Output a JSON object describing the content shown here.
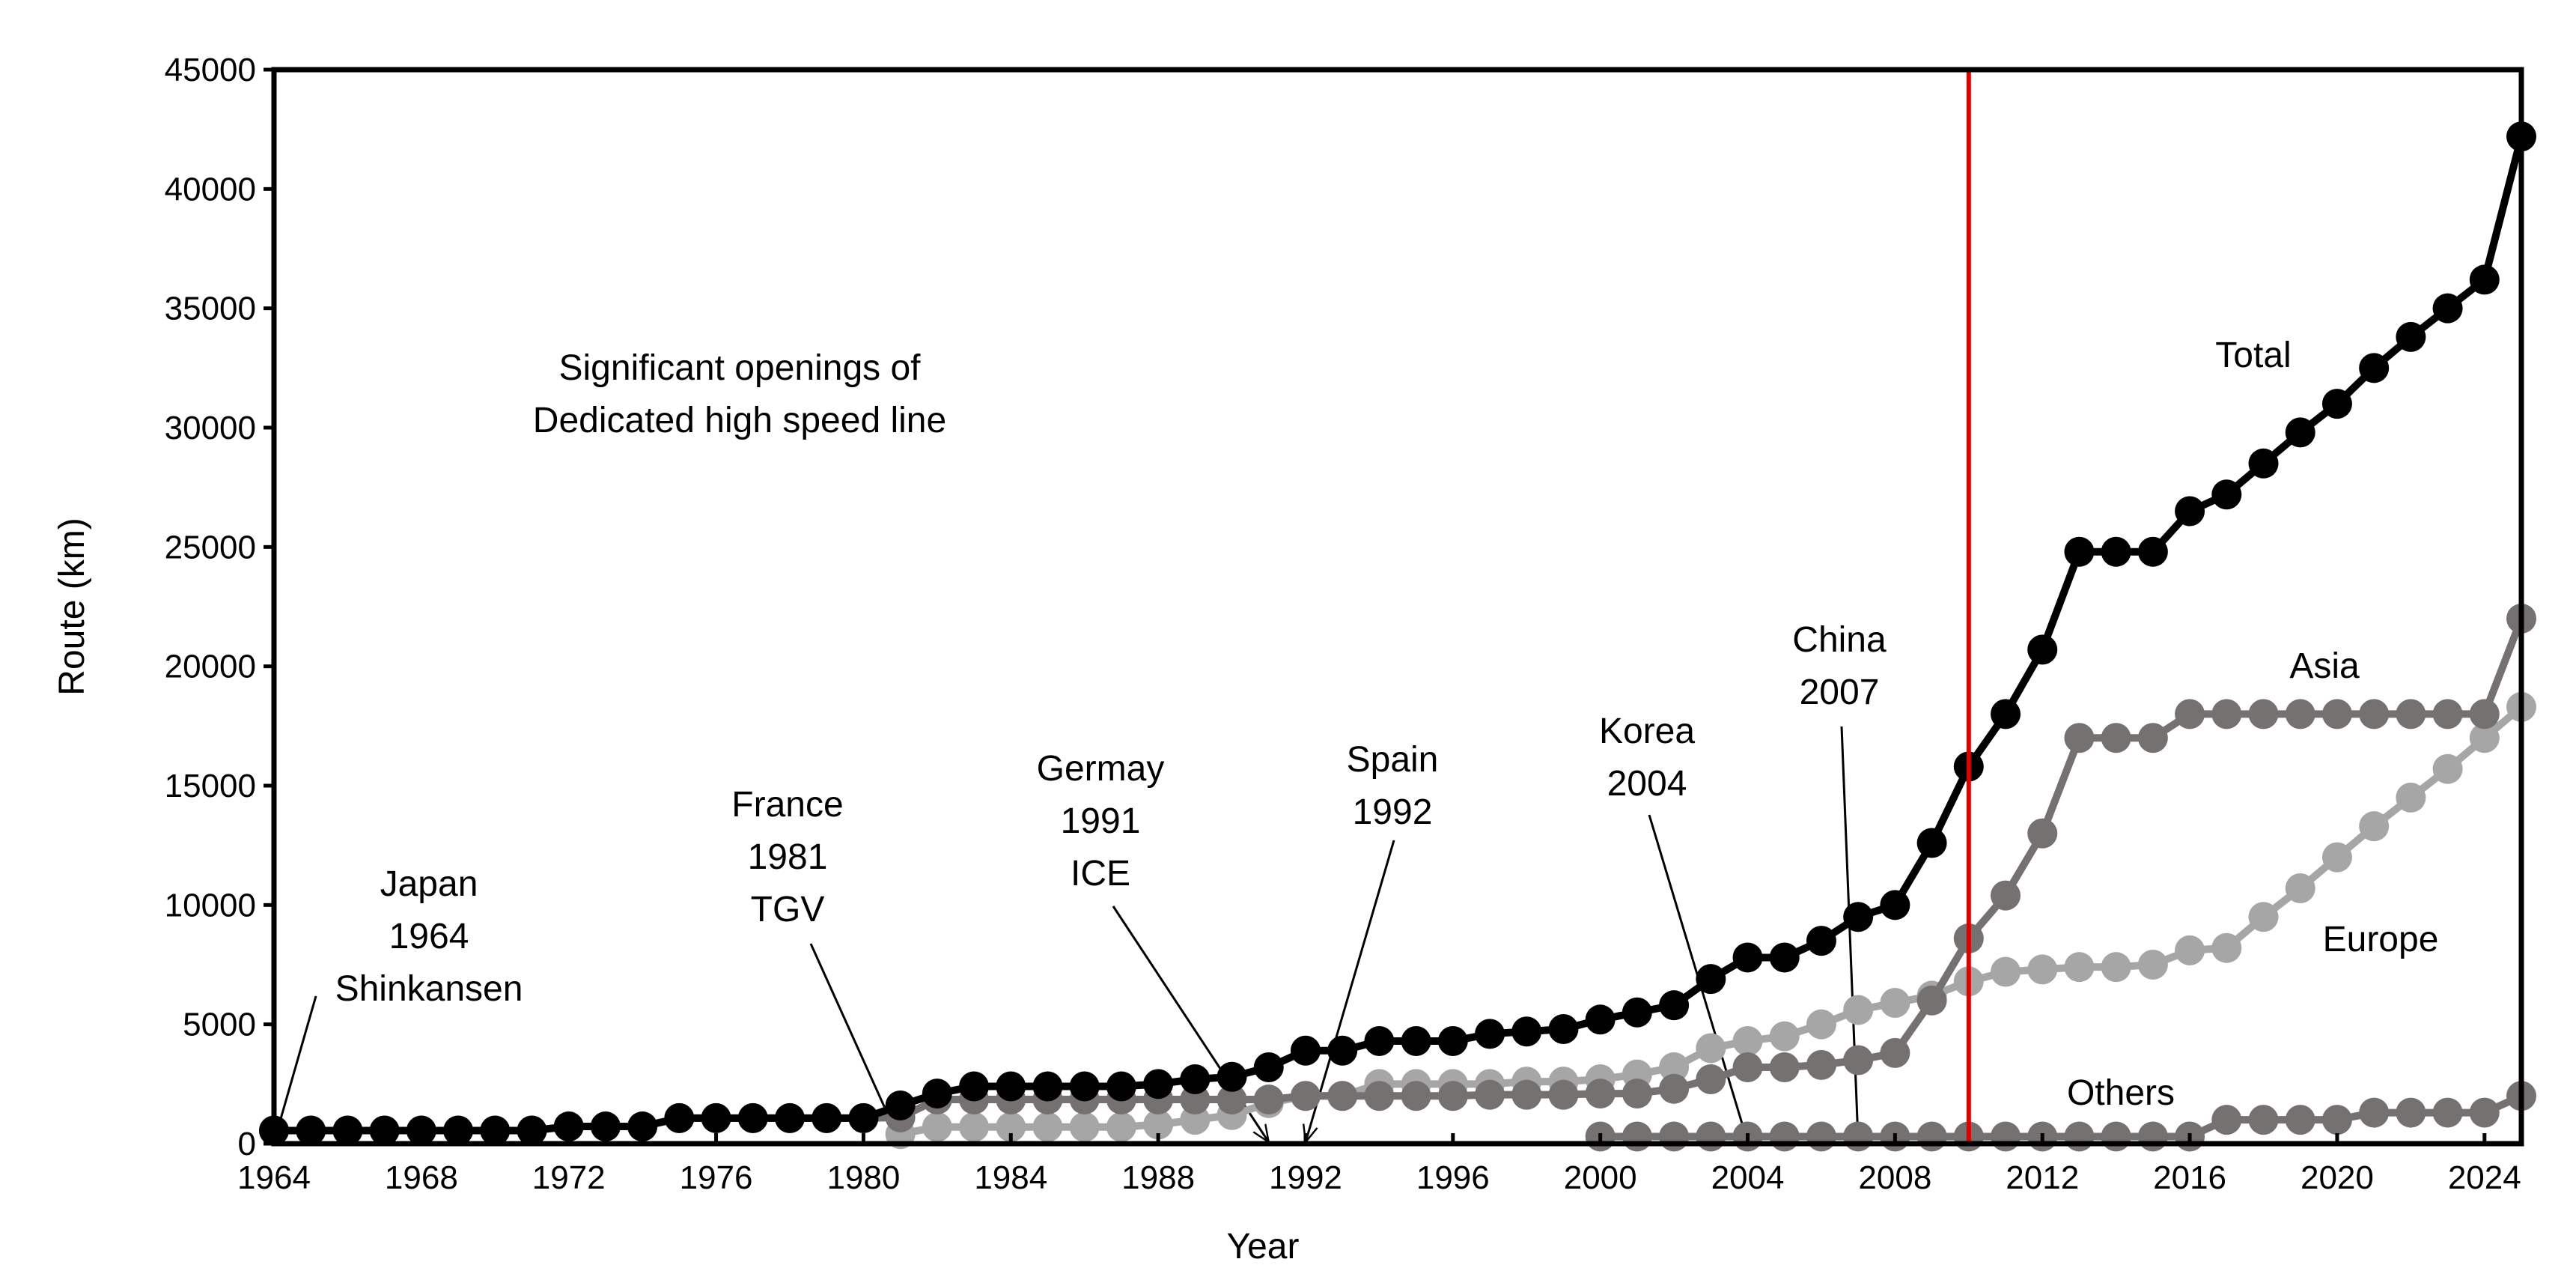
{
  "chart_data": {
    "type": "line",
    "title": "",
    "xlabel": "Year",
    "ylabel": "Route (km)",
    "xlim": [
      1964,
      2025
    ],
    "ylim": [
      0,
      45000
    ],
    "xticks": [
      1964,
      1968,
      1972,
      1976,
      1980,
      1984,
      1988,
      1992,
      1996,
      2000,
      2004,
      2008,
      2012,
      2016,
      2020,
      2024
    ],
    "yticks": [
      0,
      5000,
      10000,
      15000,
      20000,
      25000,
      30000,
      35000,
      40000,
      45000
    ],
    "grid": false,
    "reference_line": {
      "x": 2010,
      "color": "#e00000"
    },
    "series": [
      {
        "name": "Total",
        "color": "#000000",
        "x": [
          1964,
          1965,
          1966,
          1967,
          1968,
          1969,
          1970,
          1971,
          1972,
          1973,
          1974,
          1975,
          1976,
          1977,
          1978,
          1979,
          1980,
          1981,
          1982,
          1983,
          1984,
          1985,
          1986,
          1987,
          1988,
          1989,
          1990,
          1991,
          1992,
          1993,
          1994,
          1995,
          1996,
          1997,
          1998,
          1999,
          2000,
          2001,
          2002,
          2003,
          2004,
          2005,
          2006,
          2007,
          2008,
          2009,
          2010,
          2011,
          2012,
          2013,
          2014,
          2015,
          2016,
          2017,
          2018,
          2019,
          2020,
          2021,
          2022,
          2023,
          2024,
          2025
        ],
        "values": [
          550,
          550,
          550,
          550,
          550,
          550,
          550,
          550,
          720,
          720,
          720,
          1070,
          1070,
          1070,
          1070,
          1070,
          1070,
          1600,
          2100,
          2400,
          2400,
          2400,
          2400,
          2400,
          2500,
          2700,
          2800,
          3200,
          3900,
          3900,
          4300,
          4300,
          4300,
          4600,
          4700,
          4800,
          5200,
          5500,
          5800,
          6900,
          7800,
          7800,
          8500,
          9500,
          10000,
          12600,
          15800,
          18000,
          20700,
          24800,
          24800,
          24800,
          26500,
          27200,
          28500,
          29800,
          31000,
          32500,
          33800,
          35000,
          36200,
          42200
        ]
      },
      {
        "name": "Asia",
        "color": "#767171",
        "x": [
          1964,
          1965,
          1966,
          1967,
          1968,
          1969,
          1970,
          1971,
          1972,
          1973,
          1974,
          1975,
          1976,
          1977,
          1978,
          1979,
          1980,
          1981,
          1982,
          1983,
          1984,
          1985,
          1986,
          1987,
          1988,
          1989,
          1990,
          1991,
          1992,
          1993,
          1994,
          1995,
          1996,
          1997,
          1998,
          1999,
          2000,
          2001,
          2002,
          2003,
          2004,
          2005,
          2006,
          2007,
          2008,
          2009,
          2010,
          2011,
          2012,
          2013,
          2014,
          2015,
          2016,
          2017,
          2018,
          2019,
          2020,
          2021,
          2022,
          2023,
          2024,
          2025
        ],
        "values": [
          550,
          550,
          550,
          550,
          550,
          550,
          550,
          550,
          720,
          720,
          720,
          1070,
          1070,
          1070,
          1070,
          1070,
          1070,
          1100,
          1850,
          1850,
          1850,
          1850,
          1850,
          1850,
          1850,
          1850,
          1850,
          1850,
          2000,
          2000,
          2000,
          2000,
          2000,
          2050,
          2050,
          2050,
          2100,
          2100,
          2300,
          2700,
          3200,
          3200,
          3300,
          3500,
          3800,
          6000,
          8600,
          10400,
          13000,
          17000,
          17000,
          17000,
          18000,
          18000,
          18000,
          18000,
          18000,
          18000,
          18000,
          18000,
          18000,
          22000
        ]
      },
      {
        "name": "Europe",
        "color": "#a6a6a6",
        "x": [
          1981,
          1982,
          1983,
          1984,
          1985,
          1986,
          1987,
          1988,
          1989,
          1990,
          1991,
          1992,
          1993,
          1994,
          1995,
          1996,
          1997,
          1998,
          1999,
          2000,
          2001,
          2002,
          2003,
          2004,
          2005,
          2006,
          2007,
          2008,
          2009,
          2010,
          2011,
          2012,
          2013,
          2014,
          2015,
          2016,
          2017,
          2018,
          2019,
          2020,
          2021,
          2022,
          2023,
          2024,
          2025
        ],
        "values": [
          400,
          700,
          700,
          700,
          700,
          700,
          700,
          800,
          1000,
          1200,
          1700,
          2000,
          2000,
          2500,
          2500,
          2500,
          2500,
          2600,
          2600,
          2700,
          2900,
          3200,
          4000,
          4300,
          4500,
          5000,
          5600,
          5900,
          6200,
          6800,
          7200,
          7300,
          7400,
          7400,
          7500,
          8100,
          8200,
          9500,
          10700,
          12000,
          13300,
          14500,
          15700,
          17000,
          18300
        ]
      },
      {
        "name": "Others",
        "color": "#767171",
        "x": [
          2000,
          2001,
          2002,
          2003,
          2004,
          2005,
          2006,
          2007,
          2008,
          2009,
          2010,
          2011,
          2012,
          2013,
          2014,
          2015,
          2016,
          2017,
          2018,
          2019,
          2020,
          2021,
          2022,
          2023,
          2024,
          2025
        ],
        "values": [
          300,
          300,
          300,
          300,
          300,
          300,
          300,
          300,
          300,
          300,
          300,
          300,
          300,
          300,
          300,
          300,
          300,
          1000,
          1000,
          1000,
          1000,
          1300,
          1300,
          1300,
          1300,
          2000
        ]
      }
    ],
    "series_labels": [
      "Total",
      "Asia",
      "Europe",
      "Others"
    ],
    "annotations": [
      {
        "lines": [
          "Significant openings of",
          "Dedicated high speed line"
        ]
      },
      {
        "lines": [
          "Japan",
          "1964",
          "Shinkansen"
        ],
        "target_year": 1964
      },
      {
        "lines": [
          "France",
          "1981",
          "TGV"
        ],
        "target_year": 1981
      },
      {
        "lines": [
          "Germay",
          "1991",
          "ICE"
        ],
        "target_year": 1991
      },
      {
        "lines": [
          "Spain",
          "1992"
        ],
        "target_year": 1992
      },
      {
        "lines": [
          "Korea",
          "2004"
        ],
        "target_year": 2004
      },
      {
        "lines": [
          "China",
          "2007"
        ],
        "target_year": 2007
      }
    ]
  }
}
